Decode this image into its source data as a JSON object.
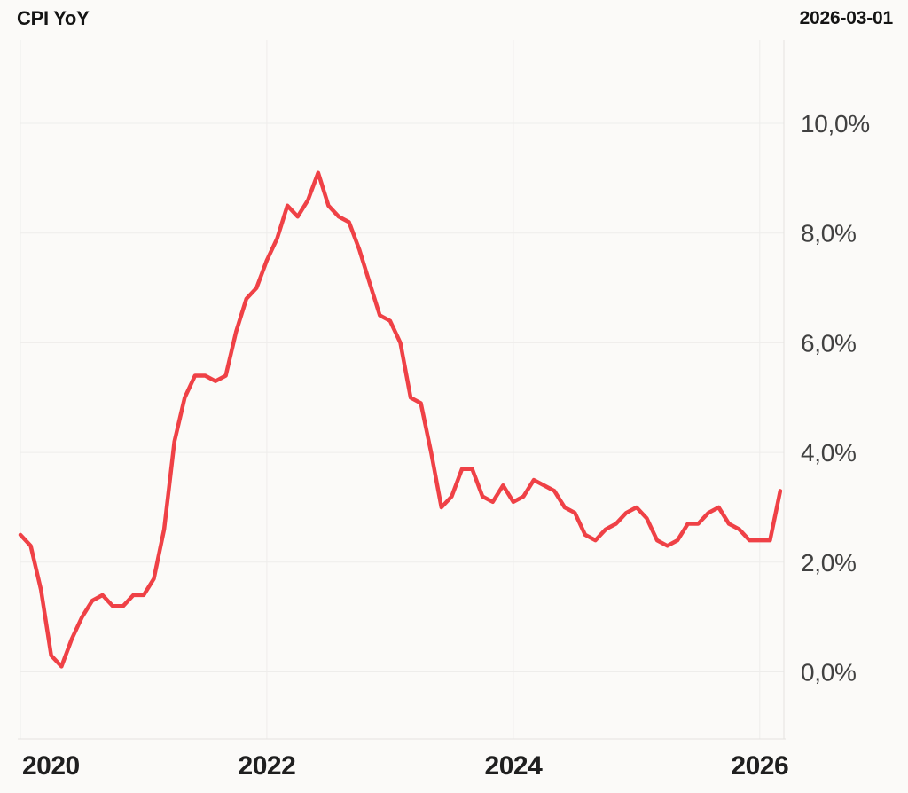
{
  "header": {
    "title": "CPI YoY",
    "as_of_date": "2026-03-01"
  },
  "chart_data": {
    "type": "line",
    "title": "CPI YoY",
    "x_unit": "month",
    "x_start": "2020-01",
    "x_end": "2026-03",
    "series": [
      {
        "name": "CPI YoY",
        "color": "#ef4146",
        "values": [
          2.5,
          2.3,
          1.5,
          0.3,
          0.1,
          0.6,
          1.0,
          1.3,
          1.4,
          1.2,
          1.2,
          1.4,
          1.4,
          1.7,
          2.6,
          4.2,
          5.0,
          5.4,
          5.4,
          5.3,
          5.4,
          6.2,
          6.8,
          7.0,
          7.5,
          7.9,
          8.5,
          8.3,
          8.6,
          9.1,
          8.5,
          8.3,
          8.2,
          7.7,
          7.1,
          6.5,
          6.4,
          6.0,
          5.0,
          4.9,
          4.0,
          3.0,
          3.2,
          3.7,
          3.7,
          3.2,
          3.1,
          3.4,
          3.1,
          3.2,
          3.5,
          3.4,
          3.3,
          3.0,
          2.9,
          2.5,
          2.4,
          2.6,
          2.7,
          2.9,
          3.0,
          2.8,
          2.4,
          2.3,
          2.4,
          2.7,
          2.7,
          2.9,
          3.0,
          2.7,
          2.6,
          2.4,
          2.4,
          2.4,
          3.3
        ]
      }
    ],
    "y_ticks": [
      {
        "value": 0,
        "label": "0,0%"
      },
      {
        "value": 2,
        "label": "2,0%"
      },
      {
        "value": 4,
        "label": "4,0%"
      },
      {
        "value": 6,
        "label": "6,0%"
      },
      {
        "value": 8,
        "label": "8,0%"
      },
      {
        "value": 10,
        "label": "10,0%"
      }
    ],
    "x_ticks": [
      {
        "month_index": 0,
        "label": "2020"
      },
      {
        "month_index": 24,
        "label": "2022"
      },
      {
        "month_index": 48,
        "label": "2024"
      },
      {
        "month_index": 72,
        "label": "2026"
      }
    ],
    "ylim": [
      -1.22,
      11.52
    ],
    "xlim": [
      0,
      74.35
    ],
    "grid": true,
    "legend_position": "none",
    "y_axis_side": "right",
    "decimal_separator": ","
  },
  "colors": {
    "line": "#ef4146",
    "grid": "#eeedeb",
    "axis_border": "#e4e3e0",
    "text_primary": "#141414",
    "tick_text": "#414141",
    "background": "#fbfaf8"
  }
}
